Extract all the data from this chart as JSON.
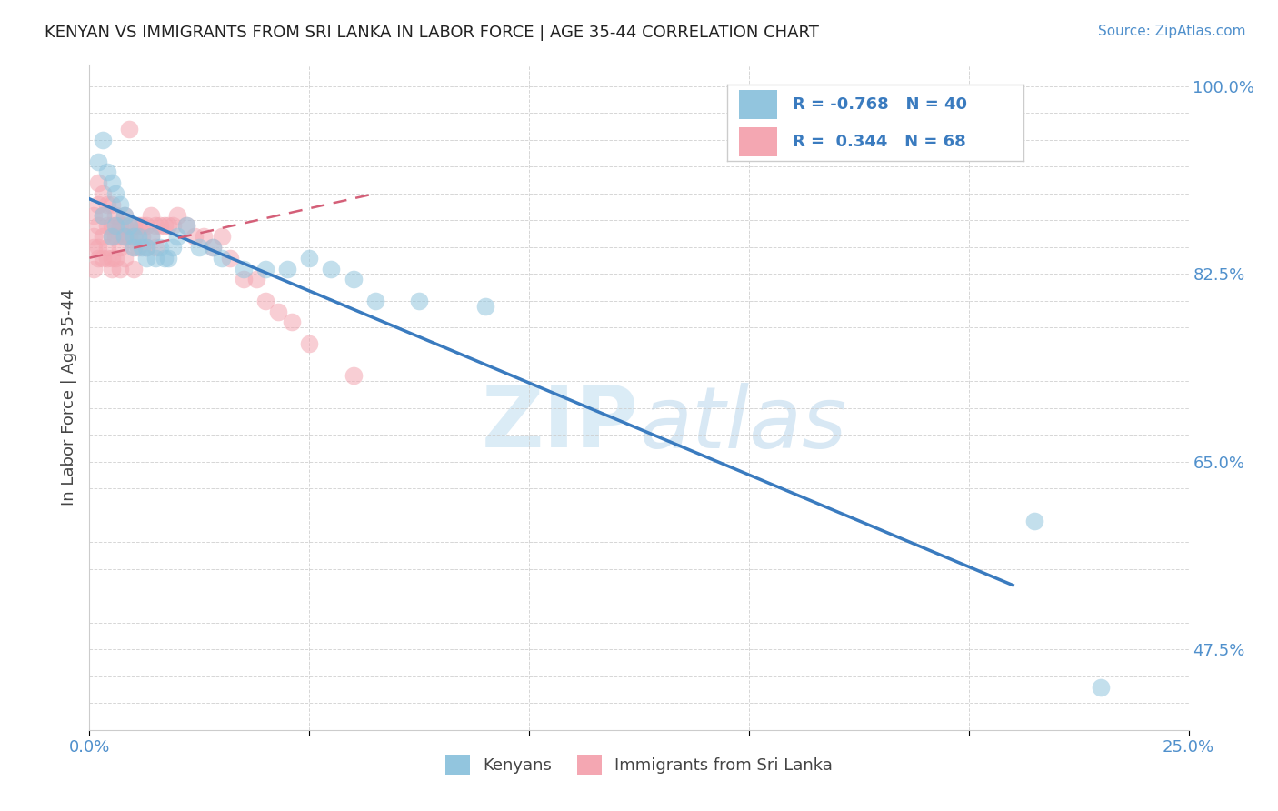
{
  "title": "KENYAN VS IMMIGRANTS FROM SRI LANKA IN LABOR FORCE | AGE 35-44 CORRELATION CHART",
  "source": "Source: ZipAtlas.com",
  "ylabel": "In Labor Force | Age 35-44",
  "xlim": [
    0.0,
    0.25
  ],
  "ylim": [
    0.4,
    1.02
  ],
  "legend_labels": [
    "Kenyans",
    "Immigrants from Sri Lanka"
  ],
  "r_blue": -0.768,
  "n_blue": 40,
  "r_pink": 0.344,
  "n_pink": 68,
  "blue_color": "#92c5de",
  "pink_color": "#f4a7b2",
  "blue_line_color": "#3a7bbf",
  "pink_line_color": "#d45f78",
  "watermark_zip": "ZIP",
  "watermark_atlas": "atlas",
  "blue_line_x": [
    0.0,
    0.21
  ],
  "blue_line_y": [
    0.895,
    0.535
  ],
  "pink_line_x": [
    0.0,
    0.065
  ],
  "pink_line_y": [
    0.84,
    0.9
  ],
  "blue_dots_x": [
    0.002,
    0.003,
    0.003,
    0.004,
    0.005,
    0.005,
    0.006,
    0.006,
    0.007,
    0.008,
    0.008,
    0.009,
    0.01,
    0.01,
    0.011,
    0.012,
    0.013,
    0.013,
    0.014,
    0.015,
    0.016,
    0.017,
    0.018,
    0.019,
    0.02,
    0.022,
    0.025,
    0.028,
    0.03,
    0.035,
    0.04,
    0.045,
    0.05,
    0.055,
    0.06,
    0.065,
    0.075,
    0.09,
    0.215,
    0.23
  ],
  "blue_dots_y": [
    0.93,
    0.95,
    0.88,
    0.92,
    0.91,
    0.86,
    0.9,
    0.87,
    0.89,
    0.86,
    0.88,
    0.87,
    0.86,
    0.85,
    0.86,
    0.85,
    0.85,
    0.84,
    0.86,
    0.84,
    0.85,
    0.84,
    0.84,
    0.85,
    0.86,
    0.87,
    0.85,
    0.85,
    0.84,
    0.83,
    0.83,
    0.83,
    0.84,
    0.83,
    0.82,
    0.8,
    0.8,
    0.795,
    0.595,
    0.44
  ],
  "pink_dots_x": [
    0.001,
    0.001,
    0.001,
    0.001,
    0.002,
    0.002,
    0.002,
    0.002,
    0.002,
    0.003,
    0.003,
    0.003,
    0.003,
    0.004,
    0.004,
    0.004,
    0.004,
    0.005,
    0.005,
    0.005,
    0.005,
    0.005,
    0.006,
    0.006,
    0.006,
    0.006,
    0.007,
    0.007,
    0.007,
    0.007,
    0.008,
    0.008,
    0.008,
    0.008,
    0.009,
    0.009,
    0.01,
    0.01,
    0.01,
    0.01,
    0.011,
    0.011,
    0.012,
    0.012,
    0.013,
    0.013,
    0.014,
    0.014,
    0.015,
    0.015,
    0.016,
    0.017,
    0.018,
    0.019,
    0.02,
    0.022,
    0.024,
    0.026,
    0.028,
    0.03,
    0.032,
    0.035,
    0.038,
    0.04,
    0.043,
    0.046,
    0.05,
    0.06
  ],
  "pink_dots_y": [
    0.88,
    0.86,
    0.85,
    0.83,
    0.91,
    0.89,
    0.87,
    0.85,
    0.84,
    0.9,
    0.88,
    0.86,
    0.84,
    0.89,
    0.87,
    0.85,
    0.84,
    0.89,
    0.87,
    0.86,
    0.84,
    0.83,
    0.88,
    0.87,
    0.86,
    0.84,
    0.87,
    0.86,
    0.85,
    0.83,
    0.88,
    0.87,
    0.86,
    0.84,
    0.96,
    0.86,
    0.87,
    0.86,
    0.85,
    0.83,
    0.87,
    0.85,
    0.87,
    0.86,
    0.87,
    0.85,
    0.88,
    0.86,
    0.87,
    0.85,
    0.87,
    0.87,
    0.87,
    0.87,
    0.88,
    0.87,
    0.86,
    0.86,
    0.85,
    0.86,
    0.84,
    0.82,
    0.82,
    0.8,
    0.79,
    0.78,
    0.76,
    0.73
  ]
}
